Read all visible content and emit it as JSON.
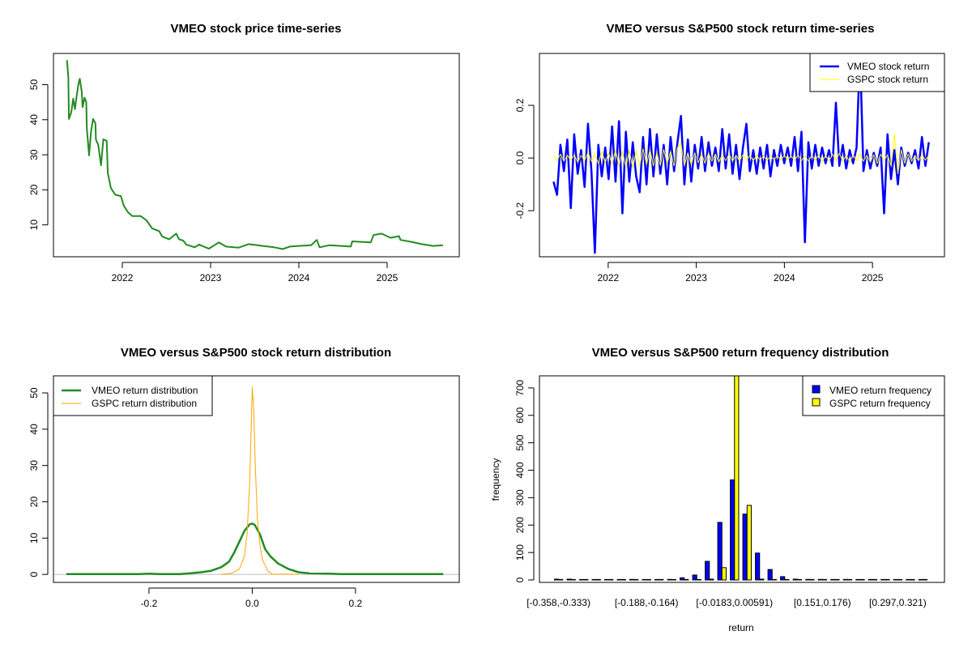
{
  "colors": {
    "vmeo_price": "#228B22",
    "vmeo_return": "#0000FF",
    "gspc_return": "#FFFF00",
    "vmeo_density": "#228B22",
    "gspc_density": "#FFA500",
    "vmeo_bar": "#0000FF",
    "gspc_bar": "#FFFF00",
    "zero_line": "#BEBEBE"
  },
  "chart_data": [
    {
      "type": "line",
      "title": "VMEO stock price time-series",
      "xlabel": "",
      "ylabel": "",
      "xlim": [
        2021.22,
        2025.817
      ],
      "ylim": [
        0.9,
        58.9
      ],
      "x_ticks": [
        {
          "v": 2022,
          "label": "2022"
        },
        {
          "v": 2023,
          "label": "2023"
        },
        {
          "v": 2024,
          "label": "2024"
        },
        {
          "v": 2025,
          "label": "2025"
        }
      ],
      "y_ticks": [
        {
          "v": 10,
          "label": "10"
        },
        {
          "v": 20,
          "label": "20"
        },
        {
          "v": 30,
          "label": "30"
        },
        {
          "v": 40,
          "label": "40"
        },
        {
          "v": 50,
          "label": "50"
        }
      ],
      "series": [
        {
          "name": "VMEO price",
          "x": [
            2021.373,
            2021.389,
            2021.395,
            2021.421,
            2021.444,
            2021.463,
            2021.479,
            2021.502,
            2021.518,
            2021.54,
            2021.55,
            2021.572,
            2021.592,
            2021.598,
            2021.624,
            2021.646,
            2021.669,
            2021.695,
            2021.701,
            2021.727,
            2021.759,
            2021.785,
            2021.823,
            2021.836,
            2021.871,
            2021.92,
            2021.984,
            2022.016,
            2022.064,
            2022.113,
            2022.209,
            2022.273,
            2022.338,
            2022.418,
            2022.45,
            2022.531,
            2022.611,
            2022.643,
            2022.691,
            2022.723,
            2022.82,
            2022.868,
            2022.981,
            2023.093,
            2023.174,
            2023.318,
            2023.431,
            2023.592,
            2023.72,
            2023.817,
            2023.897,
            2023.994,
            2024.138,
            2024.203,
            2024.235,
            2024.347,
            2024.588,
            2024.605,
            2024.814,
            2024.846,
            2024.936,
            2025.039,
            2025.135,
            2025.151,
            2025.264,
            2025.392,
            2025.521,
            2025.633
          ],
          "y": [
            57,
            52,
            40.2,
            42,
            46,
            43,
            46,
            50,
            51.7,
            48,
            43.6,
            46.3,
            45,
            37.5,
            29.8,
            36.7,
            40.2,
            39,
            34.4,
            32.8,
            27,
            34.4,
            34,
            24.8,
            20.5,
            18.6,
            18.2,
            15.5,
            13.6,
            12.5,
            12.5,
            11.3,
            9,
            8.2,
            6.7,
            5.9,
            7.5,
            5.9,
            5.5,
            4.4,
            3.6,
            4.4,
            3.2,
            5,
            3.8,
            3.5,
            4.5,
            4,
            3.6,
            3.1,
            3.8,
            4,
            4.2,
            5.7,
            3.6,
            4.2,
            3.8,
            5.3,
            5,
            7.1,
            7.5,
            6.3,
            6.8,
            5.7,
            5.2,
            4.5,
            4,
            4.2
          ]
        }
      ]
    },
    {
      "type": "line",
      "title": "VMEO versus S&P500 stock return time-series",
      "xlabel": "",
      "ylabel": "",
      "xlim": [
        2021.22,
        2025.817
      ],
      "ylim": [
        -0.375,
        0.397
      ],
      "x_start": 2021.38,
      "x_end": 2025.64,
      "x_ticks": [
        {
          "v": 2022,
          "label": "2022"
        },
        {
          "v": 2023,
          "label": "2023"
        },
        {
          "v": 2024,
          "label": "2024"
        },
        {
          "v": 2025,
          "label": "2025"
        }
      ],
      "y_ticks": [
        {
          "v": -0.2,
          "label": "-0.2"
        },
        {
          "v": 0,
          "label": "0.0"
        },
        {
          "v": 0.2,
          "label": "0.2"
        }
      ],
      "legend": {
        "position": "top-right",
        "entries": [
          "VMEO stock return",
          "GSPC stock return"
        ]
      },
      "series": [
        {
          "name": "VMEO stock return",
          "values": [
            -0.09,
            -0.14,
            0.05,
            -0.05,
            0.07,
            -0.19,
            0.09,
            -0.06,
            0.03,
            -0.11,
            0.13,
            -0.05,
            -0.36,
            0.05,
            -0.07,
            0.04,
            -0.08,
            0.12,
            -0.09,
            0.14,
            -0.21,
            0.1,
            -0.09,
            0.06,
            -0.07,
            -0.13,
            0.08,
            -0.1,
            0.11,
            -0.07,
            0.09,
            -0.06,
            0.05,
            -0.1,
            0.08,
            -0.05,
            0.06,
            0.16,
            -0.1,
            0.07,
            -0.09,
            0.05,
            -0.04,
            0.08,
            -0.05,
            0.06,
            -0.03,
            0.04,
            -0.05,
            0.11,
            -0.04,
            0.09,
            -0.06,
            0.05,
            -0.08,
            0.04,
            0.13,
            -0.05,
            0.03,
            -0.06,
            0.04,
            -0.04,
            0.05,
            -0.07,
            0.03,
            -0.03,
            0.05,
            -0.02,
            0.04,
            -0.03,
            0.08,
            -0.05,
            0.1,
            -0.32,
            0.06,
            -0.04,
            0.05,
            -0.03,
            0.04,
            -0.02,
            0.03,
            -0.03,
            0.21,
            -0.03,
            0.05,
            -0.04,
            0.03,
            -0.02,
            0.04,
            0.4,
            -0.05,
            0.03,
            -0.04,
            0.02,
            -0.03,
            0.04,
            -0.21,
            0.09,
            -0.08,
            0.03,
            -0.1,
            0.04,
            -0.03,
            0.02,
            -0.02,
            0.03,
            -0.04,
            0.08,
            -0.03,
            0.06
          ]
        },
        {
          "name": "GSPC stock return",
          "values": [
            0.01,
            -0.01,
            0.015,
            -0.012,
            0.01,
            -0.008,
            0.012,
            -0.015,
            0.01,
            -0.01,
            0.02,
            -0.012,
            0.015,
            -0.02,
            0.025,
            -0.018,
            0.02,
            -0.025,
            0.03,
            -0.03,
            0.025,
            -0.035,
            0.03,
            -0.04,
            0.028,
            -0.03,
            0.035,
            -0.025,
            0.03,
            -0.03,
            0.02,
            -0.028,
            0.032,
            -0.02,
            0.025,
            -0.03,
            0.04,
            0.055,
            -0.03,
            0.02,
            -0.025,
            0.02,
            -0.018,
            0.015,
            -0.02,
            0.018,
            -0.012,
            0.015,
            -0.015,
            0.012,
            -0.01,
            0.015,
            -0.012,
            0.01,
            -0.01,
            0.012,
            -0.008,
            0.01,
            -0.01,
            0.01,
            -0.008,
            0.009,
            -0.01,
            0.008,
            -0.006,
            0.008,
            -0.008,
            0.01,
            -0.006,
            0.008,
            -0.01,
            0.012,
            -0.01,
            0.008,
            -0.012,
            0.01,
            -0.008,
            0.012,
            -0.015,
            0.01,
            -0.012,
            0.015,
            -0.01,
            0.018,
            -0.012,
            0.01,
            -0.015,
            0.012,
            -0.01,
            0.015,
            -0.012,
            0.01,
            -0.015,
            0.012,
            -0.02,
            0.015,
            -0.01,
            0.012,
            -0.03,
            0.09,
            -0.06,
            0.03,
            -0.02,
            0.015,
            -0.012,
            0.01,
            -0.01,
            0.012,
            -0.008,
            0.01
          ]
        }
      ]
    },
    {
      "type": "line",
      "title": "VMEO versus S&P500 stock return distribution",
      "xlabel": "",
      "ylabel": "",
      "xlim": [
        -0.385,
        0.401
      ],
      "ylim": [
        -2.2,
        54.7
      ],
      "x_ticks": [
        {
          "v": -0.2,
          "label": "-0.2"
        },
        {
          "v": 0,
          "label": "0.0"
        },
        {
          "v": 0.2,
          "label": "0.2"
        }
      ],
      "y_ticks": [
        {
          "v": 0,
          "label": "0"
        },
        {
          "v": 10,
          "label": "10"
        },
        {
          "v": 20,
          "label": "20"
        },
        {
          "v": 30,
          "label": "30"
        },
        {
          "v": 40,
          "label": "40"
        },
        {
          "v": 50,
          "label": "50"
        }
      ],
      "legend": {
        "position": "top-left",
        "entries": [
          "VMEO return distribution",
          "GSPC return distribution"
        ]
      },
      "series": [
        {
          "name": "VMEO return distribution",
          "x": [
            -0.36,
            -0.22,
            -0.2,
            -0.18,
            -0.14,
            -0.12,
            -0.1,
            -0.08,
            -0.06,
            -0.045,
            -0.035,
            -0.025,
            -0.015,
            -0.005,
            0,
            0.005,
            0.015,
            0.025,
            0.035,
            0.05,
            0.07,
            0.09,
            0.11,
            0.15,
            0.17,
            0.37
          ],
          "y": [
            0.1,
            0.1,
            0.2,
            0.1,
            0.1,
            0.3,
            0.6,
            1.0,
            2.0,
            3.5,
            6,
            9,
            12,
            13.8,
            14,
            13.6,
            11,
            7,
            5,
            3,
            1.5,
            0.6,
            0.3,
            0.2,
            0.1,
            0.1
          ]
        },
        {
          "name": "GSPC return distribution",
          "x": [
            -0.06,
            -0.04,
            -0.025,
            -0.015,
            -0.01,
            -0.005,
            -0.002,
            0,
            0.003,
            0.006,
            0.01,
            0.015,
            0.02,
            0.03,
            0.04,
            0.06,
            0.09
          ],
          "y": [
            0,
            0.3,
            1.5,
            5,
            11,
            25,
            40,
            51.5,
            45,
            30,
            15,
            8,
            4,
            1,
            0,
            0.1,
            0
          ]
        }
      ]
    },
    {
      "type": "bar",
      "title": "VMEO versus S&P500 return frequency distribution",
      "xlabel": "return",
      "ylabel": "frequency",
      "ylim": [
        0,
        744
      ],
      "bin_count": 30,
      "x_tick_labels": [
        {
          "bin": 0,
          "label": "[-0.358,-0.333)"
        },
        {
          "bin": 7,
          "label": "[-0.188,-0.164)"
        },
        {
          "bin": 14,
          "label": "[-0.0183,0.00591)"
        },
        {
          "bin": 21,
          "label": "[0.151,0.176)"
        },
        {
          "bin": 27,
          "label": "[0.297,0.321)"
        }
      ],
      "y_ticks": [
        {
          "v": 0,
          "label": "0"
        },
        {
          "v": 100,
          "label": "100"
        },
        {
          "v": 200,
          "label": "200"
        },
        {
          "v": 300,
          "label": "300"
        },
        {
          "v": 400,
          "label": "400"
        },
        {
          "v": 500,
          "label": "500"
        },
        {
          "v": 600,
          "label": "600"
        },
        {
          "v": 700,
          "label": "700"
        }
      ],
      "legend": {
        "position": "top-right",
        "entries": [
          "VMEO return frequency",
          "GSPC return frequency"
        ]
      },
      "series": [
        {
          "name": "VMEO return frequency",
          "values": [
            3,
            3,
            0,
            0,
            0,
            0,
            2,
            0,
            0,
            2,
            8,
            18,
            68,
            210,
            365,
            240,
            98,
            38,
            12,
            3,
            2,
            2,
            0,
            2,
            0,
            0,
            0,
            0,
            0,
            0
          ]
        },
        {
          "name": "GSPC return frequency",
          "values": [
            0,
            0,
            0,
            0,
            0,
            0,
            0,
            0,
            0,
            0,
            0,
            0,
            3,
            45,
            760,
            272,
            3,
            0,
            0,
            0,
            0,
            0,
            0,
            0,
            0,
            0,
            0,
            0,
            0,
            0
          ]
        }
      ]
    }
  ]
}
